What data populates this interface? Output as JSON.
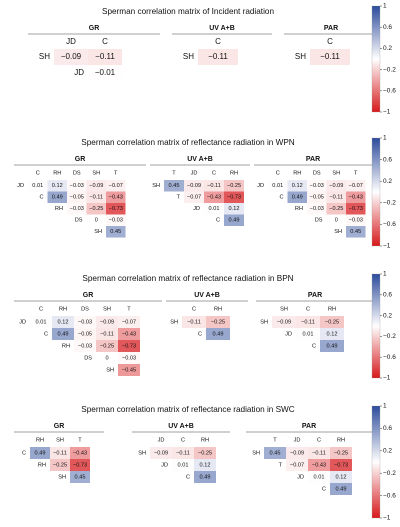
{
  "chart_data": [
    {
      "type": "heatmap",
      "title": "Sperman correlation matrix of Incident radiation",
      "colorbar": {
        "ticks": [
          "1",
          "0.6",
          "0.2",
          "−0.2",
          "−0.6",
          "−1"
        ],
        "low_color": "#d7191c",
        "mid_color": "#ffffff",
        "high_color": "#2c4b9b"
      },
      "panels": [
        {
          "name": "GR",
          "cols": [
            "JD",
            "C"
          ],
          "rows": [
            "SH",
            "JD"
          ],
          "values": [
            [
              -0.09,
              -0.11
            ],
            [
              null,
              -0.01
            ]
          ]
        },
        {
          "name": "UV A+B",
          "cols": [
            "C"
          ],
          "rows": [
            "SH"
          ],
          "values": [
            [
              -0.11
            ]
          ]
        },
        {
          "name": "PAR",
          "cols": [
            "C"
          ],
          "rows": [
            "SH"
          ],
          "values": [
            [
              -0.11
            ]
          ]
        }
      ]
    },
    {
      "type": "heatmap",
      "title": "Sperman correlation matrix of reflectance radiation in WPN",
      "colorbar": {
        "ticks": [
          "1",
          "0.6",
          "0.2",
          "−0.2",
          "−0.6",
          "−1"
        ],
        "low_color": "#d7191c",
        "mid_color": "#ffffff",
        "high_color": "#2c4b9b"
      },
      "panels": [
        {
          "name": "GR",
          "cols": [
            "C",
            "RH",
            "DS",
            "SH",
            "T"
          ],
          "rows": [
            "JD",
            "C",
            "RH",
            "DS",
            "SH"
          ],
          "values": [
            [
              0.01,
              0.12,
              -0.03,
              -0.09,
              -0.07
            ],
            [
              null,
              0.49,
              -0.05,
              -0.11,
              -0.43
            ],
            [
              null,
              null,
              -0.03,
              -0.25,
              -0.73
            ],
            [
              null,
              null,
              null,
              0,
              -0.03
            ],
            [
              null,
              null,
              null,
              null,
              0.45
            ]
          ]
        },
        {
          "name": "UV A+B",
          "cols": [
            "T",
            "JD",
            "C",
            "RH"
          ],
          "rows": [
            "SH",
            "T",
            "JD",
            "C"
          ],
          "values": [
            [
              0.45,
              -0.09,
              -0.11,
              -0.25
            ],
            [
              null,
              -0.07,
              -0.43,
              -0.73
            ],
            [
              null,
              null,
              0.01,
              0.12
            ],
            [
              null,
              null,
              null,
              0.49
            ]
          ]
        },
        {
          "name": "PAR",
          "cols": [
            "C",
            "RH",
            "DS",
            "SH",
            "T"
          ],
          "rows": [
            "JD",
            "C",
            "RH",
            "DS",
            "SH"
          ],
          "values": [
            [
              0.01,
              0.12,
              -0.03,
              -0.09,
              -0.07
            ],
            [
              null,
              0.49,
              -0.05,
              -0.11,
              -0.43
            ],
            [
              null,
              null,
              -0.03,
              -0.25,
              -0.73
            ],
            [
              null,
              null,
              null,
              0,
              -0.03
            ],
            [
              null,
              null,
              null,
              null,
              0.45
            ]
          ]
        }
      ]
    },
    {
      "type": "heatmap",
      "title": "Sperman correlation matrix of reflectance radiation in BPN",
      "colorbar": {
        "ticks": [
          "1",
          "0.6",
          "0.2",
          "−0.2",
          "−0.6",
          "−1"
        ],
        "low_color": "#d7191c",
        "mid_color": "#ffffff",
        "high_color": "#2c4b9b"
      },
      "panels": [
        {
          "name": "GR",
          "cols": [
            "C",
            "RH",
            "DS",
            "SH",
            "T"
          ],
          "rows": [
            "JD",
            "C",
            "RH",
            "DS",
            "SH"
          ],
          "values": [
            [
              0.01,
              0.12,
              -0.03,
              -0.09,
              -0.07
            ],
            [
              null,
              0.49,
              -0.05,
              -0.11,
              -0.43
            ],
            [
              null,
              null,
              -0.03,
              -0.25,
              -0.73
            ],
            [
              null,
              null,
              null,
              0,
              -0.03
            ],
            [
              null,
              null,
              null,
              null,
              -0.45
            ]
          ]
        },
        {
          "name": "UV A+B",
          "cols": [
            "C",
            "RH"
          ],
          "rows": [
            "SH",
            "C"
          ],
          "values": [
            [
              -0.11,
              -0.25
            ],
            [
              null,
              0.49
            ]
          ]
        },
        {
          "name": "PAR",
          "cols": [
            "SH",
            "C",
            "RH"
          ],
          "rows": [
            "SH",
            "JD",
            "C"
          ],
          "values": [
            [
              -0.09,
              -0.11,
              -0.25
            ],
            [
              null,
              0.01,
              0.12
            ],
            [
              null,
              null,
              0.49
            ]
          ]
        }
      ]
    },
    {
      "type": "heatmap",
      "title": "Sperman correlation matrix of reflectance radiation in SWC",
      "colorbar": {
        "ticks": [
          "1",
          "0.6",
          "0.2",
          "−0.2",
          "−0.6",
          "−1"
        ],
        "low_color": "#d7191c",
        "mid_color": "#ffffff",
        "high_color": "#2c4b9b"
      },
      "panels": [
        {
          "name": "GR",
          "cols": [
            "RH",
            "SH",
            "T"
          ],
          "rows": [
            "C",
            "RH",
            "SH"
          ],
          "values": [
            [
              0.49,
              -0.11,
              -0.43
            ],
            [
              null,
              -0.25,
              -0.73
            ],
            [
              null,
              null,
              0.45
            ]
          ]
        },
        {
          "name": "UV A+B",
          "cols": [
            "JD",
            "C",
            "RH"
          ],
          "rows": [
            "SH",
            "JD",
            "C"
          ],
          "values": [
            [
              -0.09,
              -0.11,
              -0.25
            ],
            [
              null,
              0.01,
              0.12
            ],
            [
              null,
              null,
              0.49
            ]
          ]
        },
        {
          "name": "PAR",
          "cols": [
            "T",
            "JD",
            "C",
            "RH"
          ],
          "rows": [
            "SH",
            "T",
            "JD",
            "C"
          ],
          "values": [
            [
              0.45,
              -0.09,
              -0.11,
              -0.25
            ],
            [
              null,
              -0.07,
              -0.43,
              -0.73
            ],
            [
              null,
              null,
              0.01,
              0.12
            ],
            [
              null,
              null,
              null,
              0.49
            ]
          ]
        }
      ]
    }
  ]
}
